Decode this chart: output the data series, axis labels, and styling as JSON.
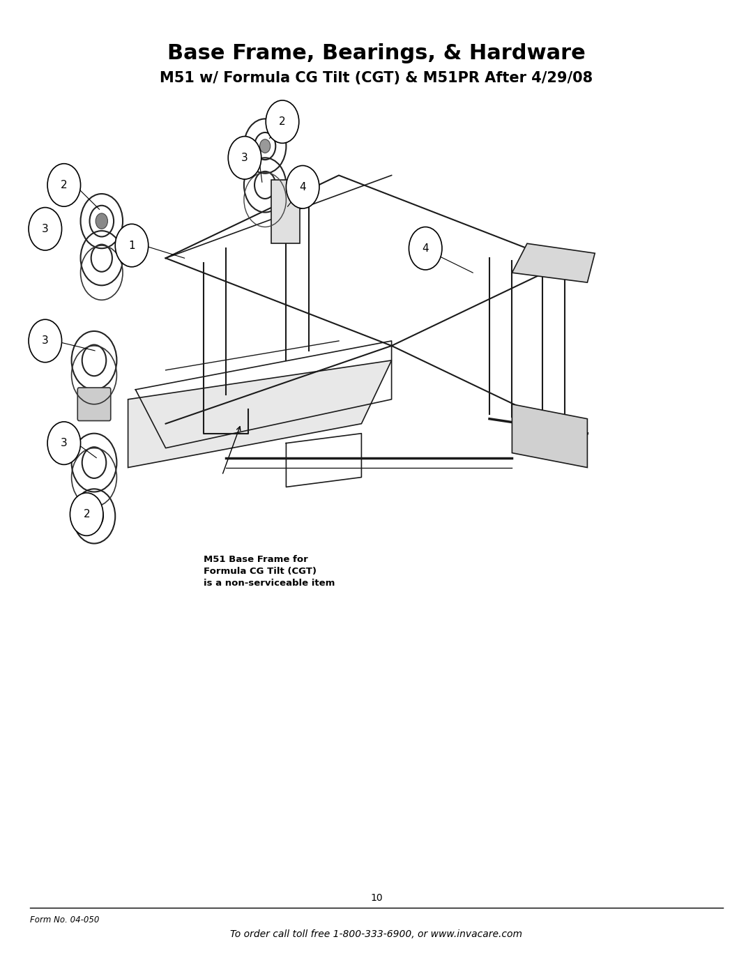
{
  "title_line1": "Base Frame, Bearings, & Hardware",
  "title_line2": "M51 w/ Formula CG Tilt (CGT) & M51PR After 4/29/08",
  "page_number": "10",
  "form_number": "Form No. 04-050",
  "footer_text": "To order call toll free 1-800-333-6900, or www.invacare.com",
  "background_color": "#ffffff",
  "text_color": "#000000",
  "title_fontsize": 22,
  "subtitle_fontsize": 15,
  "footer_fontsize": 10,
  "annotation_note": "M51 Base Frame for\nFormula CG Tilt (CGT)\nis a non-serviceable item"
}
